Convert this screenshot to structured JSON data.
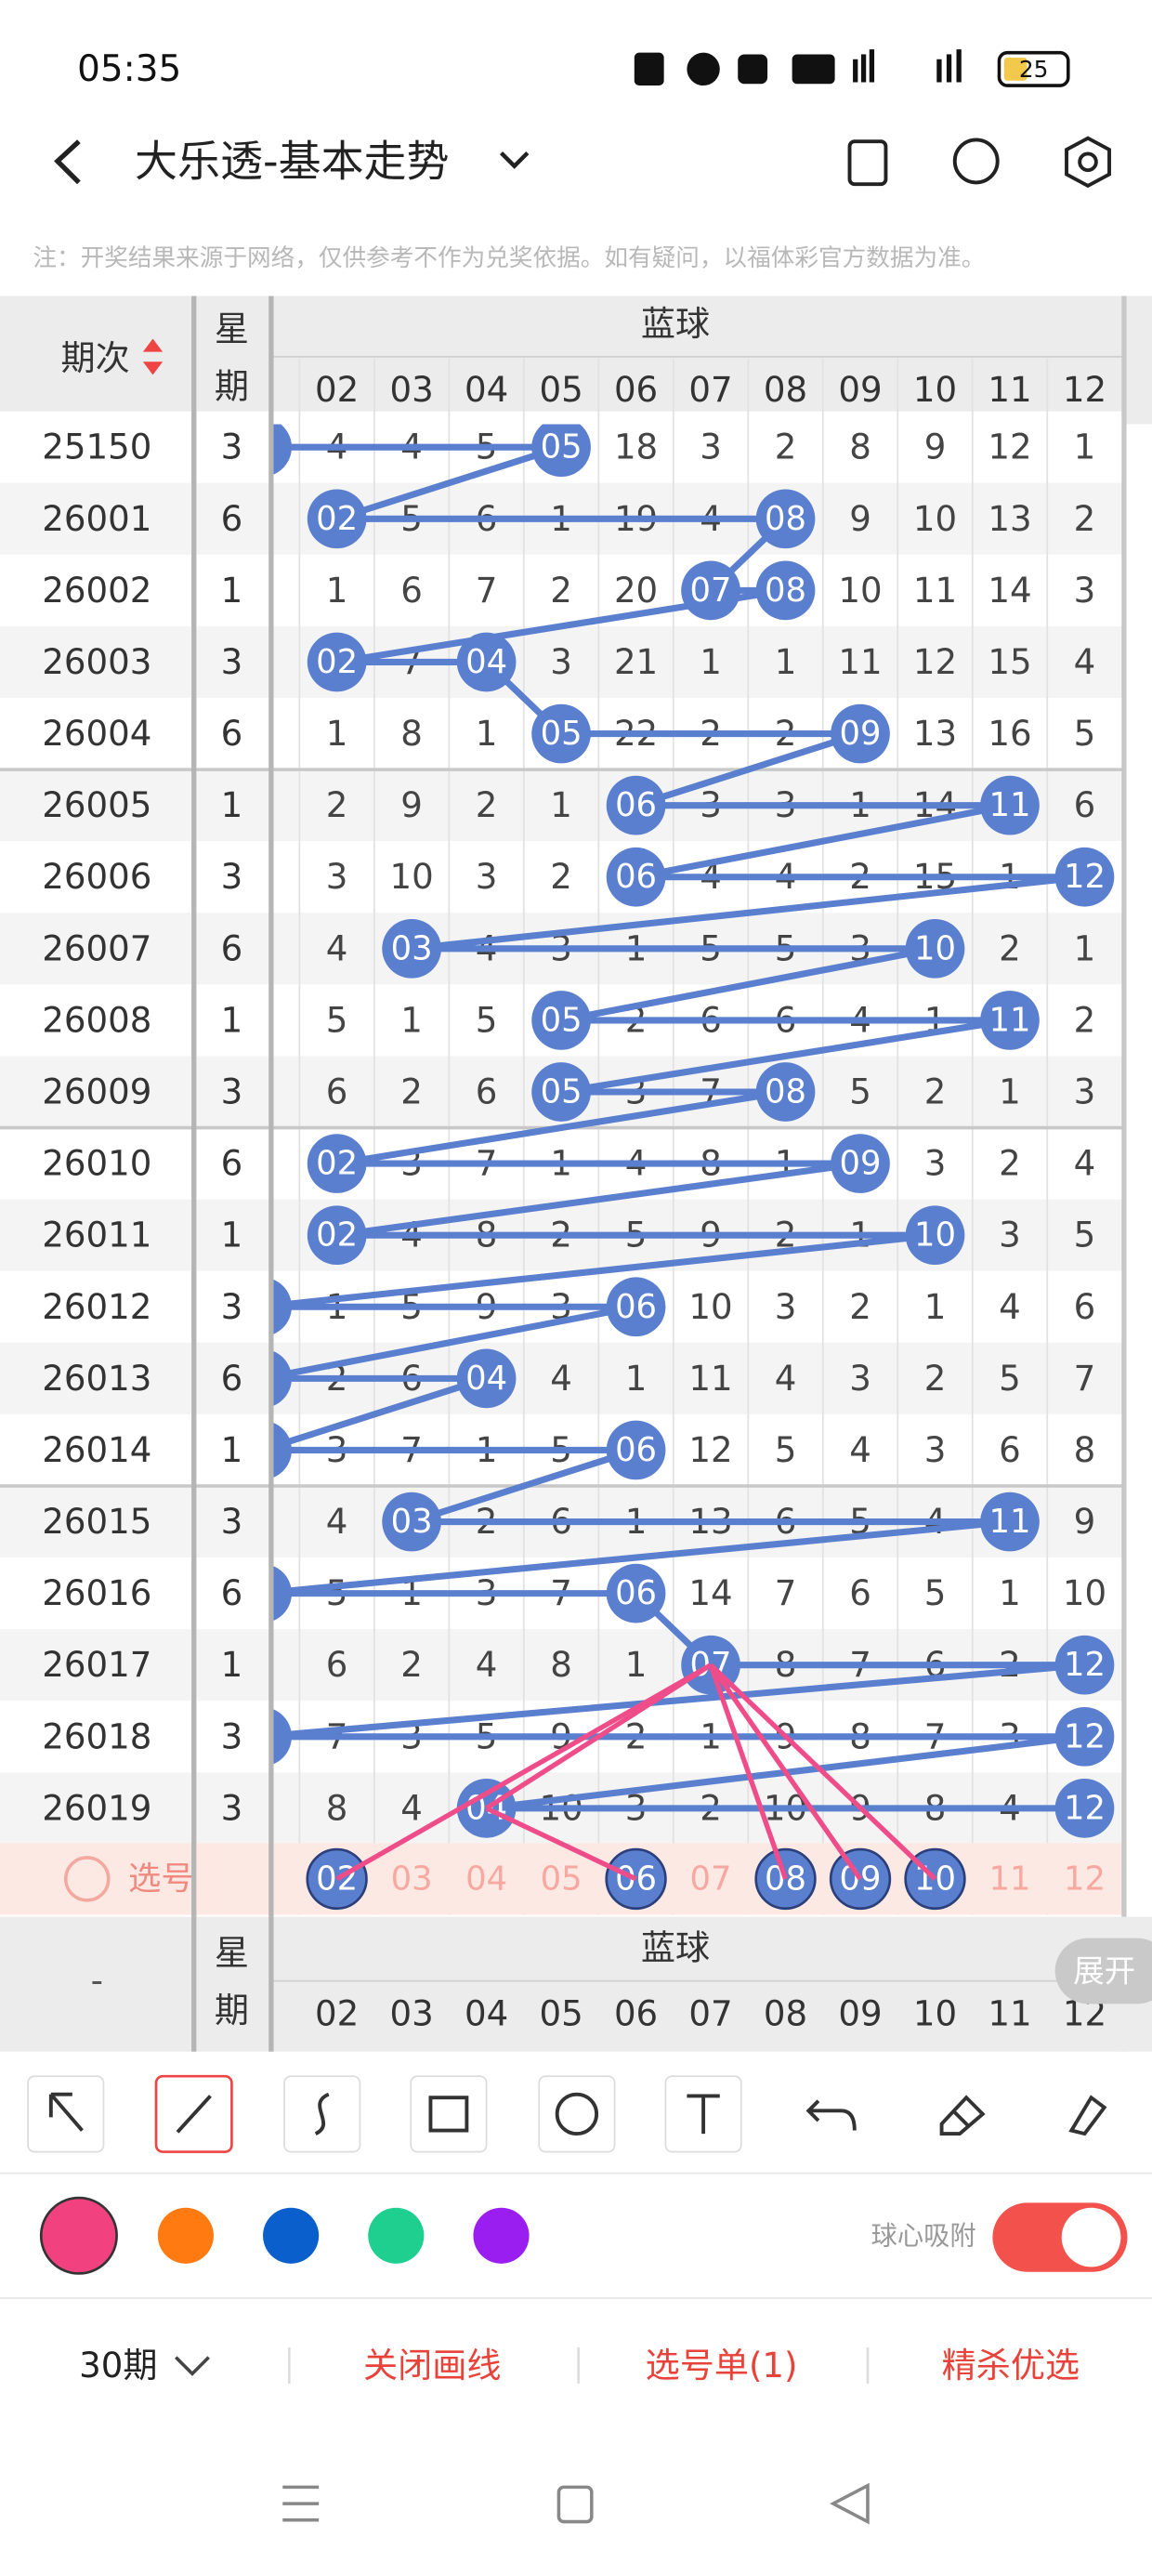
{
  "status_bar": {
    "time": "05:35",
    "battery": "25"
  },
  "header": {
    "title": "大乐透-基本走势"
  },
  "notice": "注：开奖结果来源于网络，仅供参考不作为兑奖依据。如有疑问，以福体彩官方数据为准。",
  "table": {
    "period_header": "期次",
    "weekday_header": [
      "星",
      "期"
    ],
    "group_header": "蓝球",
    "columns": [
      "02",
      "03",
      "04",
      "05",
      "06",
      "07",
      "08",
      "09",
      "10",
      "11",
      "12"
    ],
    "rows": [
      {
        "period": "25150",
        "weekday": "3",
        "cells": [
          "4",
          "4",
          "5",
          "05",
          "18",
          "3",
          "2",
          "8",
          "9",
          "12",
          "1"
        ],
        "hits": [
          3
        ],
        "edge_hit": true
      },
      {
        "period": "26001",
        "weekday": "6",
        "cells": [
          "02",
          "5",
          "6",
          "1",
          "19",
          "4",
          "08",
          "9",
          "10",
          "13",
          "2"
        ],
        "hits": [
          0,
          6
        ],
        "edge_hit": false
      },
      {
        "period": "26002",
        "weekday": "1",
        "cells": [
          "1",
          "6",
          "7",
          "2",
          "20",
          "07",
          "08",
          "10",
          "11",
          "14",
          "3"
        ],
        "hits": [
          5,
          6
        ],
        "edge_hit": false
      },
      {
        "period": "26003",
        "weekday": "3",
        "cells": [
          "02",
          "7",
          "04",
          "3",
          "21",
          "1",
          "1",
          "11",
          "12",
          "15",
          "4"
        ],
        "hits": [
          0,
          2
        ],
        "edge_hit": false
      },
      {
        "period": "26004",
        "weekday": "6",
        "cells": [
          "1",
          "8",
          "1",
          "05",
          "22",
          "2",
          "2",
          "09",
          "13",
          "16",
          "5"
        ],
        "hits": [
          3,
          7
        ],
        "edge_hit": false
      },
      {
        "period": "26005",
        "weekday": "1",
        "cells": [
          "2",
          "9",
          "2",
          "1",
          "06",
          "3",
          "3",
          "1",
          "14",
          "11",
          "6"
        ],
        "hits": [
          4,
          9
        ],
        "edge_hit": false
      },
      {
        "period": "26006",
        "weekday": "3",
        "cells": [
          "3",
          "10",
          "3",
          "2",
          "06",
          "4",
          "4",
          "2",
          "15",
          "1",
          "12"
        ],
        "hits": [
          4,
          10
        ],
        "edge_hit": false
      },
      {
        "period": "26007",
        "weekday": "6",
        "cells": [
          "4",
          "03",
          "4",
          "3",
          "1",
          "5",
          "5",
          "3",
          "10",
          "2",
          "1"
        ],
        "hits": [
          1,
          8
        ],
        "edge_hit": false
      },
      {
        "period": "26008",
        "weekday": "1",
        "cells": [
          "5",
          "1",
          "5",
          "05",
          "2",
          "6",
          "6",
          "4",
          "1",
          "11",
          "2"
        ],
        "hits": [
          3,
          9
        ],
        "edge_hit": false
      },
      {
        "period": "26009",
        "weekday": "3",
        "cells": [
          "6",
          "2",
          "6",
          "05",
          "3",
          "7",
          "08",
          "5",
          "2",
          "1",
          "3"
        ],
        "hits": [
          3,
          6
        ],
        "edge_hit": false
      },
      {
        "period": "26010",
        "weekday": "6",
        "cells": [
          "02",
          "3",
          "7",
          "1",
          "4",
          "8",
          "1",
          "09",
          "3",
          "2",
          "4"
        ],
        "hits": [
          0,
          7
        ],
        "edge_hit": false
      },
      {
        "period": "26011",
        "weekday": "1",
        "cells": [
          "02",
          "4",
          "8",
          "2",
          "5",
          "9",
          "2",
          "1",
          "10",
          "3",
          "5"
        ],
        "hits": [
          0,
          8
        ],
        "edge_hit": false
      },
      {
        "period": "26012",
        "weekday": "3",
        "cells": [
          "1",
          "5",
          "9",
          "3",
          "06",
          "10",
          "3",
          "2",
          "1",
          "4",
          "6"
        ],
        "hits": [
          4
        ],
        "edge_hit": true
      },
      {
        "period": "26013",
        "weekday": "6",
        "cells": [
          "2",
          "6",
          "04",
          "4",
          "1",
          "11",
          "4",
          "3",
          "2",
          "5",
          "7"
        ],
        "hits": [
          2
        ],
        "edge_hit": true
      },
      {
        "period": "26014",
        "weekday": "1",
        "cells": [
          "3",
          "7",
          "1",
          "5",
          "06",
          "12",
          "5",
          "4",
          "3",
          "6",
          "8"
        ],
        "hits": [
          4
        ],
        "edge_hit": true
      },
      {
        "period": "26015",
        "weekday": "3",
        "cells": [
          "4",
          "03",
          "2",
          "6",
          "1",
          "13",
          "6",
          "5",
          "4",
          "11",
          "9"
        ],
        "hits": [
          1,
          9
        ],
        "edge_hit": false
      },
      {
        "period": "26016",
        "weekday": "6",
        "cells": [
          "5",
          "1",
          "3",
          "7",
          "06",
          "14",
          "7",
          "6",
          "5",
          "1",
          "10"
        ],
        "hits": [
          4
        ],
        "edge_hit": true
      },
      {
        "period": "26017",
        "weekday": "1",
        "cells": [
          "6",
          "2",
          "4",
          "8",
          "1",
          "07",
          "8",
          "7",
          "6",
          "2",
          "12"
        ],
        "hits": [
          5,
          10
        ],
        "edge_hit": false
      },
      {
        "period": "26018",
        "weekday": "3",
        "cells": [
          "7",
          "3",
          "5",
          "9",
          "2",
          "1",
          "9",
          "8",
          "7",
          "3",
          "12"
        ],
        "hits": [
          10
        ],
        "edge_hit": true
      },
      {
        "period": "26019",
        "weekday": "3",
        "cells": [
          "8",
          "4",
          "04",
          "10",
          "3",
          "2",
          "10",
          "9",
          "8",
          "4",
          "12"
        ],
        "hits": [
          2,
          10
        ],
        "edge_hit": false
      }
    ],
    "select_label": "选号",
    "selected": [
      0,
      4,
      6,
      7,
      8
    ],
    "footer": {
      "period_header": "-",
      "weekday_header": [
        "星",
        "期"
      ],
      "group_header": "蓝球"
    },
    "expand": "展开"
  },
  "drawing_tools": {
    "colors": [
      "#f2417f",
      "#ff7a10",
      "#0a5fcc",
      "#1ecf8f",
      "#9a1ef0"
    ],
    "snap_label": "球心吸附"
  },
  "bottom_bar": {
    "periods": "30期",
    "close": "关闭画线",
    "ticket": "选号单(1)",
    "pick": "精杀优选"
  }
}
